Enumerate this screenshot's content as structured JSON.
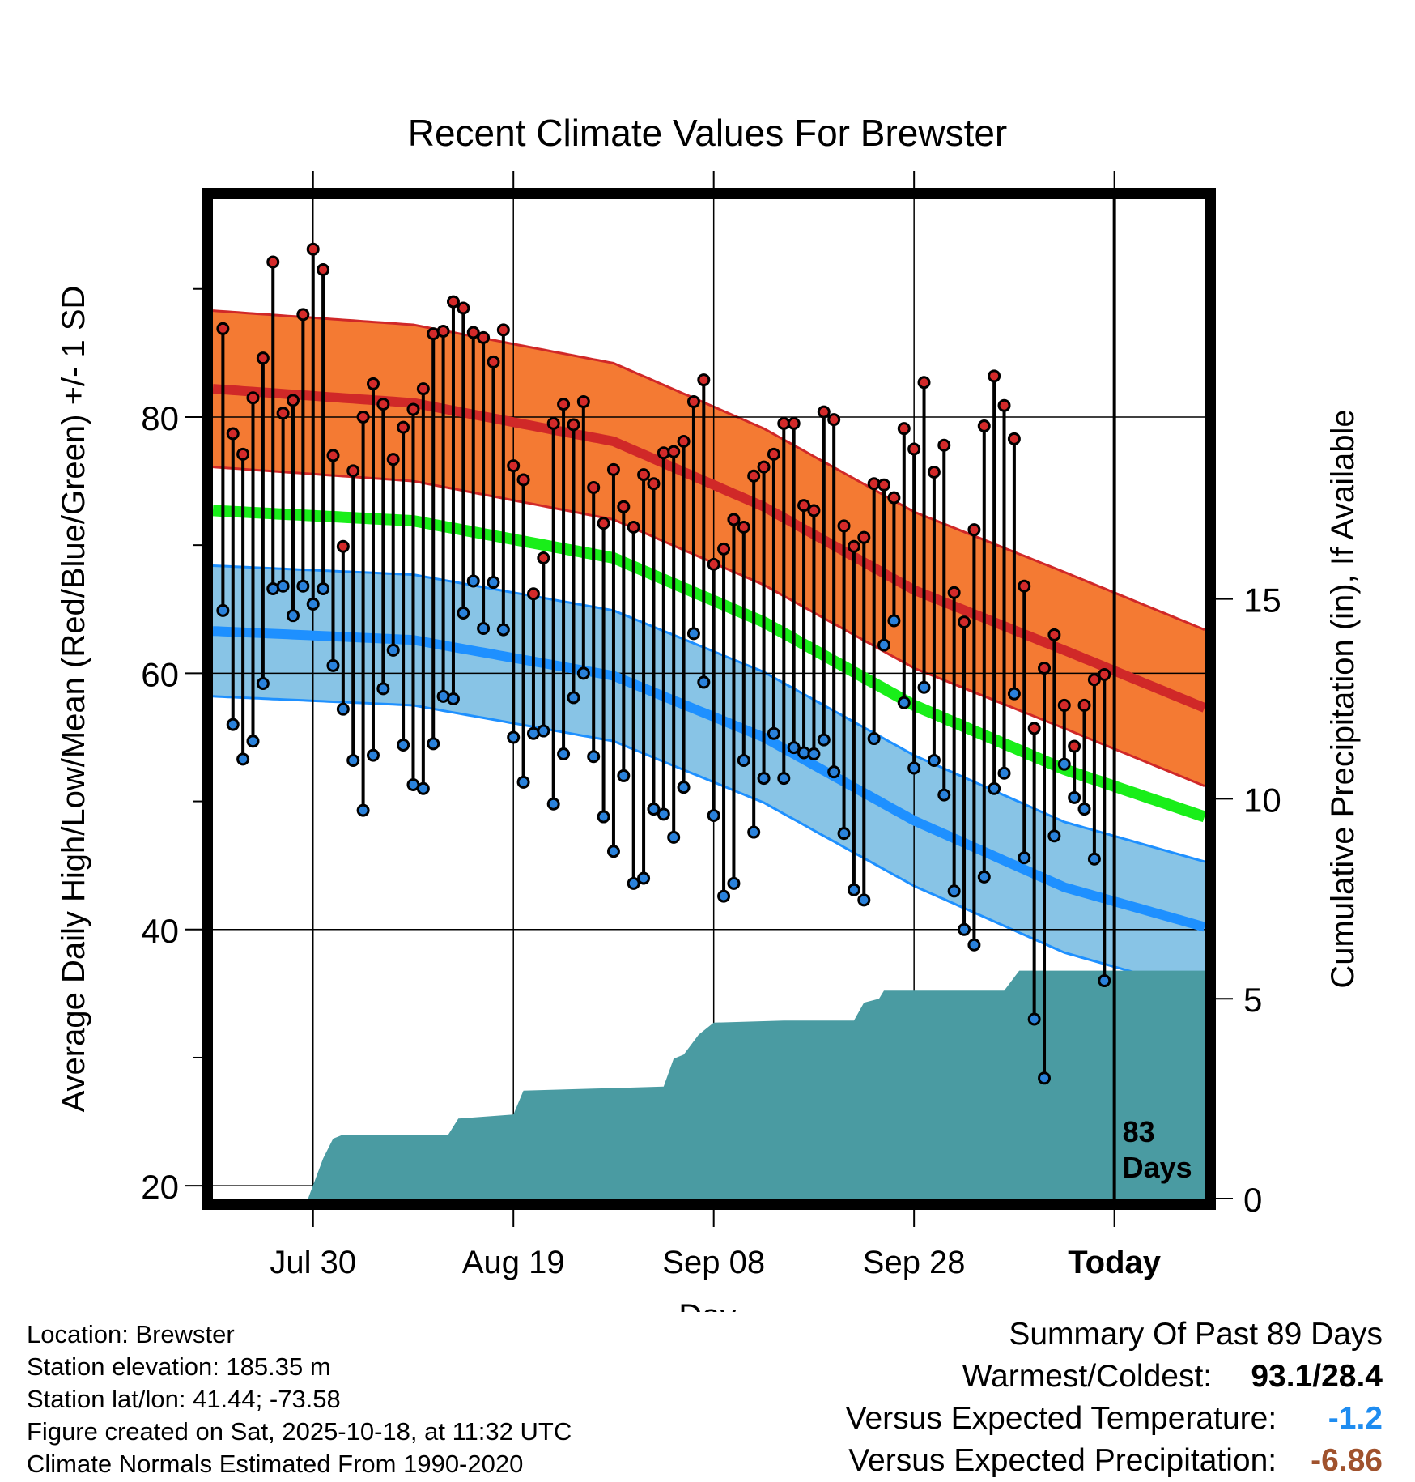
{
  "chart_data": {
    "type": "line",
    "title": "Recent Climate Values For Brewster",
    "xlabel": "Day",
    "ylabel": "Average Daily High/Low/Mean (Red/Blue/Green) +/- 1 SD",
    "y2label": "Cumulative Precipitation (in), If Available",
    "xlim": [
      0,
      99
    ],
    "ylim": [
      19,
      97
    ],
    "y2lim": [
      0,
      25
    ],
    "yticks": [
      20,
      40,
      60,
      80
    ],
    "yticks_minor": [
      30,
      50,
      70,
      90
    ],
    "y2ticks": [
      0,
      5,
      10,
      15
    ],
    "xticks": [
      {
        "day": 10,
        "label": "Jul 30"
      },
      {
        "day": 30,
        "label": "Aug 19"
      },
      {
        "day": 50,
        "label": "Sep 08"
      },
      {
        "day": 70,
        "label": "Sep 28"
      },
      {
        "day": 90,
        "label": "Today"
      }
    ],
    "today_day": 90,
    "today_annotation": [
      "83",
      "Days"
    ],
    "normal_high": {
      "days": [
        0,
        20,
        40,
        55,
        70,
        85,
        99
      ],
      "mean": [
        82.2,
        81.1,
        78.1,
        73.0,
        66.5,
        61.8,
        57.3
      ],
      "sd": 6.1
    },
    "normal_low": {
      "days": [
        0,
        20,
        40,
        55,
        70,
        85,
        99
      ],
      "mean": [
        63.3,
        62.6,
        59.8,
        55.0,
        48.5,
        43.3,
        40.2
      ],
      "sd": 5.1
    },
    "normal_mean": {
      "days": [
        0,
        20,
        40,
        55,
        70,
        85,
        99
      ],
      "values": [
        72.7,
        71.9,
        69.0,
        64.0,
        57.5,
        52.5,
        48.8
      ]
    },
    "colors": {
      "high_band": "#f47a33",
      "high_line": "#d02828",
      "low_band": "#88c4e6",
      "low_line": "#1e90ff",
      "mean_line": "#19ee19",
      "precip": "#4a9ba2",
      "high_dot": "#d42a2a",
      "low_dot": "#2a82dc"
    },
    "series": [
      {
        "name": "High",
        "values": [
          86.9,
          78.7,
          77.1,
          81.5,
          84.6,
          92.1,
          80.3,
          81.3,
          88.0,
          93.1,
          91.5,
          77.0,
          69.9,
          75.8,
          80.0,
          82.6,
          81.0,
          76.7,
          79.2,
          80.6,
          82.2,
          86.5,
          86.7,
          89.0,
          88.5,
          86.6,
          86.2,
          84.3,
          86.8,
          76.2,
          75.1,
          66.2,
          69.0,
          79.5,
          81.0,
          79.4,
          81.2,
          74.5,
          71.7,
          75.9,
          73.0,
          71.4,
          75.5,
          74.8,
          77.2,
          77.3,
          78.1,
          81.2,
          82.9,
          68.5,
          69.7,
          72.0,
          71.4,
          75.4,
          76.1,
          77.1,
          79.5,
          79.5,
          73.1,
          72.7,
          80.4,
          79.8,
          71.5,
          69.9,
          70.6,
          74.8,
          74.7,
          73.7,
          79.1,
          77.5,
          82.7,
          75.7,
          77.8,
          66.3,
          64.0,
          71.2,
          79.3,
          83.2,
          80.9,
          78.3,
          66.8,
          55.7,
          60.4,
          63.0,
          57.5,
          54.3,
          57.5,
          59.5,
          59.9
        ]
      },
      {
        "name": "Low",
        "values": [
          64.9,
          56.0,
          53.3,
          54.7,
          59.2,
          66.6,
          66.8,
          64.5,
          66.8,
          65.4,
          66.6,
          60.6,
          57.2,
          53.2,
          49.3,
          53.6,
          58.8,
          61.8,
          54.4,
          51.3,
          51.0,
          54.5,
          58.2,
          58.0,
          64.7,
          67.2,
          63.5,
          67.1,
          63.4,
          55.0,
          51.5,
          55.3,
          55.5,
          49.8,
          53.7,
          58.1,
          60.0,
          53.5,
          48.8,
          46.1,
          52.0,
          43.6,
          44.0,
          49.4,
          49.0,
          47.2,
          51.1,
          63.1,
          59.3,
          48.9,
          42.6,
          43.6,
          53.2,
          47.6,
          51.8,
          55.3,
          51.8,
          54.2,
          53.8,
          53.7,
          54.8,
          52.3,
          47.5,
          43.1,
          42.3,
          54.9,
          62.2,
          64.1,
          57.7,
          52.6,
          58.9,
          53.2,
          50.5,
          43.0,
          40.0,
          38.8,
          44.1,
          51.0,
          52.2,
          58.4,
          45.6,
          33.0,
          28.4,
          47.3,
          52.9,
          50.3,
          49.4,
          45.5,
          36.0
        ]
      }
    ],
    "precip_cumulative": [
      {
        "day": 0,
        "in": 0.0
      },
      {
        "day": 9.5,
        "in": 0.0
      },
      {
        "day": 11,
        "in": 1.0
      },
      {
        "day": 12,
        "in": 1.5
      },
      {
        "day": 13,
        "in": 1.6
      },
      {
        "day": 23.5,
        "in": 1.6
      },
      {
        "day": 24.5,
        "in": 2.0
      },
      {
        "day": 30,
        "in": 2.1
      },
      {
        "day": 31,
        "in": 2.7
      },
      {
        "day": 38,
        "in": 2.75
      },
      {
        "day": 45,
        "in": 2.8
      },
      {
        "day": 46,
        "in": 3.5
      },
      {
        "day": 47,
        "in": 3.6
      },
      {
        "day": 48.5,
        "in": 4.1
      },
      {
        "day": 50,
        "in": 4.4
      },
      {
        "day": 57,
        "in": 4.45
      },
      {
        "day": 64,
        "in": 4.45
      },
      {
        "day": 65,
        "in": 4.9
      },
      {
        "day": 66.5,
        "in": 5.0
      },
      {
        "day": 67,
        "in": 5.2
      },
      {
        "day": 79,
        "in": 5.2
      },
      {
        "day": 80.5,
        "in": 5.7
      },
      {
        "day": 99,
        "in": 5.7
      }
    ],
    "legend": "none"
  },
  "meta": {
    "location": "Location: Brewster",
    "elevation": "Station elevation: 185.35 m",
    "latlon": "Station lat/lon: 41.44; -73.58",
    "created": "Figure created on Sat, 2025-10-18, at 11:32 UTC",
    "normals": "Climate Normals Estimated From 1990-2020"
  },
  "summary": {
    "title": "Summary Of Past 89 Days",
    "warmest_label": "Warmest/Coldest:",
    "warmest_value": "93.1/28.4",
    "temp_label": "Versus Expected Temperature:",
    "temp_value": "-1.2",
    "temp_color": "#1e8cf0",
    "precip_label": "Versus Expected Precipitation:",
    "precip_value": "-6.86",
    "precip_color": "#a0522d"
  }
}
